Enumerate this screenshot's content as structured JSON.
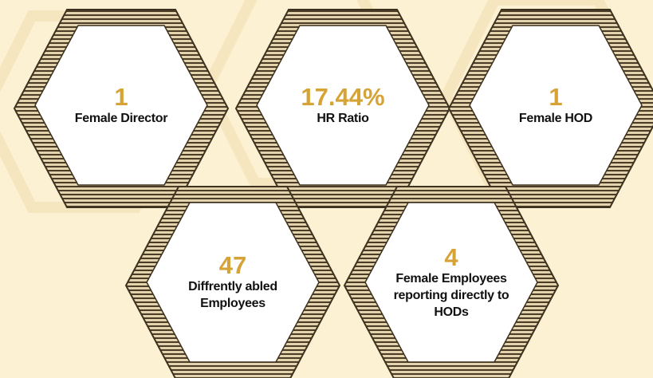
{
  "items": [
    {
      "value": "1",
      "label": "Female Director"
    },
    {
      "value": "17.44%",
      "label": "HR Ratio"
    },
    {
      "value": "1",
      "label": "Female HOD"
    },
    {
      "value": "47",
      "label": "Diffrently abled Employees"
    },
    {
      "value": "4",
      "label": "Female Employees reporting directly to HODs"
    }
  ]
}
